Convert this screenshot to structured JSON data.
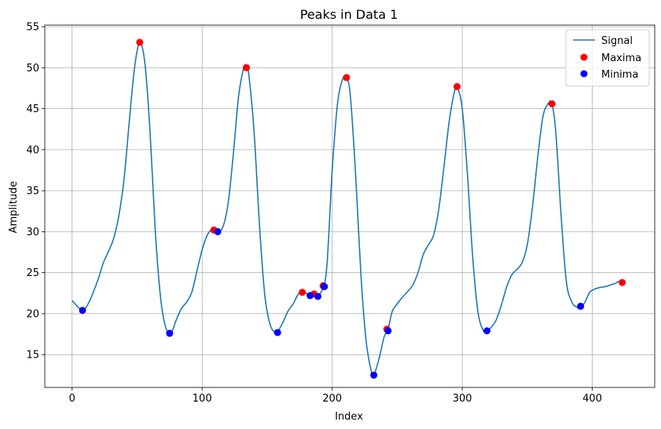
{
  "chart_data": {
    "type": "line",
    "title": "Peaks in Data 1",
    "xlabel": "Index",
    "ylabel": "Amplitude",
    "xlim": [
      -21,
      448
    ],
    "ylim": [
      11,
      55.2
    ],
    "xticks": [
      0,
      100,
      200,
      300,
      400
    ],
    "yticks": [
      15,
      20,
      25,
      30,
      35,
      40,
      45,
      50,
      55
    ],
    "grid": true,
    "legend_position": "top-right",
    "series": [
      {
        "name": "Signal",
        "kind": "line",
        "color": "#1f77b4",
        "x": [
          0,
          4,
          8,
          12,
          16,
          20,
          24,
          28,
          32,
          36,
          40,
          44,
          48,
          52,
          56,
          60,
          64,
          68,
          72,
          76,
          80,
          84,
          88,
          92,
          96,
          100,
          104,
          108,
          112,
          116,
          120,
          124,
          128,
          132,
          134,
          136,
          140,
          144,
          148,
          152,
          156,
          158,
          162,
          166,
          170,
          174,
          177,
          180,
          183,
          186,
          189,
          192,
          194,
          196,
          198,
          200,
          204,
          208,
          211,
          214,
          218,
          222,
          226,
          230,
          232,
          236,
          240,
          243,
          246,
          250,
          254,
          258,
          262,
          266,
          270,
          274,
          278,
          282,
          286,
          290,
          294,
          296,
          300,
          304,
          308,
          312,
          316,
          319,
          322,
          326,
          330,
          334,
          338,
          342,
          346,
          350,
          354,
          358,
          362,
          366,
          369,
          372,
          376,
          380,
          384,
          388,
          391,
          394,
          398,
          402,
          406,
          410,
          414,
          418,
          420,
          423
        ],
        "y": [
          21.6,
          20.9,
          20.4,
          21.1,
          22.5,
          24.2,
          26.2,
          27.6,
          29.2,
          32.0,
          36.5,
          43.5,
          50.0,
          53.0,
          50.5,
          42.0,
          30.0,
          22.0,
          18.3,
          17.6,
          19.2,
          20.6,
          21.4,
          22.6,
          25.2,
          27.8,
          29.6,
          30.3,
          30.0,
          30.6,
          33.5,
          39.5,
          46.5,
          50.0,
          50.2,
          49.0,
          42.0,
          31.0,
          22.5,
          18.8,
          17.7,
          17.8,
          18.9,
          20.3,
          21.2,
          22.4,
          22.7,
          22.5,
          22.3,
          22.5,
          22.1,
          22.8,
          23.4,
          26.0,
          31.5,
          37.5,
          45.5,
          48.6,
          48.8,
          46.5,
          37.0,
          25.0,
          16.8,
          13.0,
          12.5,
          14.5,
          17.2,
          18.1,
          20.2,
          21.2,
          22.0,
          22.7,
          23.5,
          25.0,
          27.2,
          28.4,
          29.6,
          32.8,
          38.0,
          43.5,
          47.1,
          47.7,
          45.0,
          37.0,
          27.0,
          20.3,
          18.0,
          17.9,
          18.3,
          19.2,
          21.0,
          23.2,
          24.7,
          25.4,
          26.2,
          28.4,
          33.0,
          39.0,
          44.0,
          45.6,
          45.6,
          42.0,
          32.0,
          24.0,
          21.5,
          20.8,
          20.9,
          21.3,
          22.6,
          23.0,
          23.2,
          23.3,
          23.5,
          23.7,
          23.9,
          23.8
        ]
      },
      {
        "name": "Maxima",
        "kind": "scatter",
        "color": "#ff0000",
        "points": [
          [
            52,
            53.1
          ],
          [
            109,
            30.2
          ],
          [
            134,
            50.0
          ],
          [
            177,
            22.6
          ],
          [
            186,
            22.4
          ],
          [
            193,
            23.4
          ],
          [
            211,
            48.8
          ],
          [
            242,
            18.1
          ],
          [
            296,
            47.7
          ],
          [
            369,
            45.6
          ],
          [
            423,
            23.8
          ]
        ]
      },
      {
        "name": "Minima",
        "kind": "scatter",
        "color": "#0000ff",
        "points": [
          [
            8,
            20.4
          ],
          [
            75,
            17.6
          ],
          [
            112,
            30.0
          ],
          [
            158,
            17.7
          ],
          [
            183,
            22.2
          ],
          [
            189,
            22.1
          ],
          [
            194,
            23.3
          ],
          [
            232,
            12.5
          ],
          [
            243,
            17.9
          ],
          [
            319,
            17.9
          ],
          [
            391,
            20.9
          ]
        ]
      }
    ]
  }
}
